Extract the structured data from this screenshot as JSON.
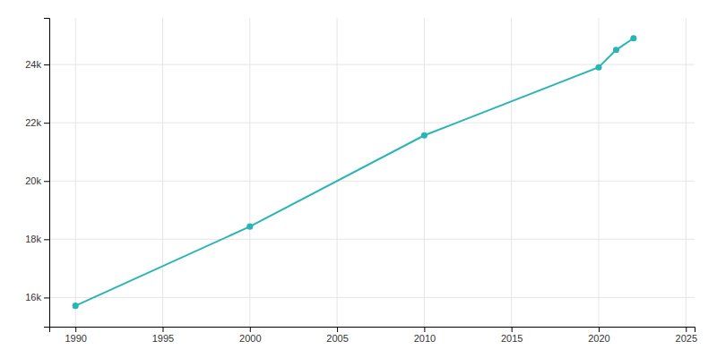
{
  "chart_data": {
    "type": "line",
    "x": [
      1990,
      2000,
      2010,
      2020,
      2021,
      2022
    ],
    "values": [
      15718,
      18437,
      21567,
      23902,
      24500,
      24900
    ],
    "color": "#2ab5b5",
    "marker": "circle",
    "xlim": [
      1988.5,
      2025.5
    ],
    "ylim": [
      15000,
      25600
    ],
    "xticks": [
      1990,
      1995,
      2000,
      2005,
      2010,
      2015,
      2020,
      2025
    ],
    "yticks": [
      {
        "value": 16000,
        "label": "16k"
      },
      {
        "value": 18000,
        "label": "18k"
      },
      {
        "value": 20000,
        "label": "20k"
      },
      {
        "value": 22000,
        "label": "22k"
      },
      {
        "value": 24000,
        "label": "24k"
      }
    ],
    "grid": true
  }
}
